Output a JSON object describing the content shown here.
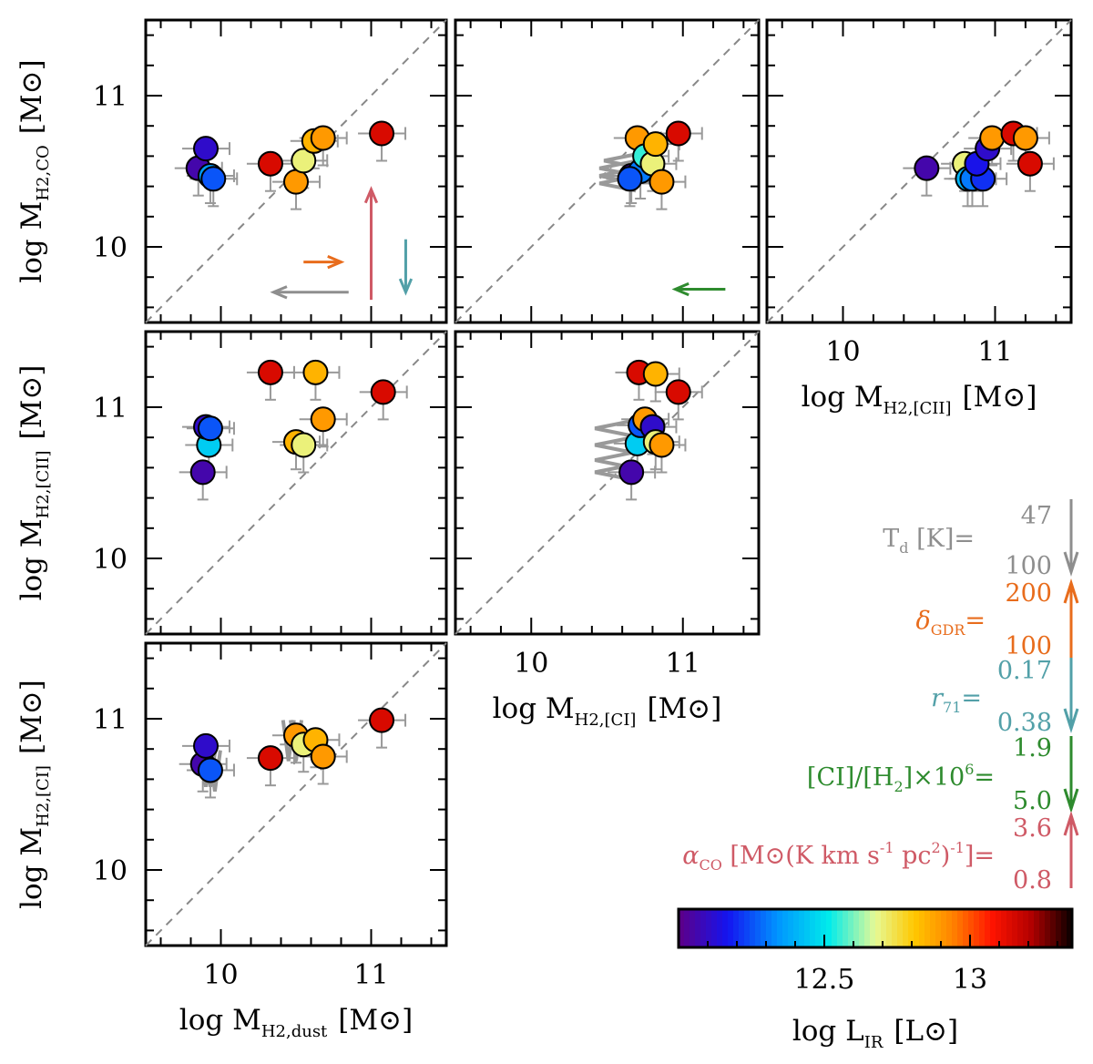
{
  "panels": [
    {
      "id": "dust-vs-co",
      "xlabel": "",
      "ylabel_main": "log M",
      "ylabel_sub": "H2,CO",
      "yunit": "[M⊙]",
      "xlim": [
        9.5,
        11.5
      ],
      "ylim": [
        9.5,
        11.5
      ],
      "show_xticks": false,
      "show_yticks": true,
      "xgap": [
        true,
        true
      ],
      "ygap": [
        false,
        true
      ],
      "points": [
        {
          "x": 9.85,
          "y": 10.52,
          "c": 12.05
        },
        {
          "x": 9.9,
          "y": 10.65,
          "c": 12.1
        },
        {
          "x": 9.93,
          "y": 10.47,
          "c": 12.35
        },
        {
          "x": 9.95,
          "y": 10.45,
          "c": 12.25
        },
        {
          "x": 10.33,
          "y": 10.55,
          "c": 13.15
        },
        {
          "x": 10.5,
          "y": 10.43,
          "c": 12.9
        },
        {
          "x": 10.55,
          "y": 10.57,
          "c": 12.7
        },
        {
          "x": 10.62,
          "y": 10.7,
          "c": 12.85
        },
        {
          "x": 10.68,
          "y": 10.72,
          "c": 12.9
        },
        {
          "x": 11.07,
          "y": 10.75,
          "c": 13.15
        }
      ],
      "arrows": [
        {
          "x1": 10.85,
          "y1": 9.7,
          "x2": 10.35,
          "y2": 9.7,
          "color": "#8e8e8e"
        },
        {
          "x1": 10.55,
          "y1": 9.9,
          "x2": 10.8,
          "y2": 9.9,
          "color": "#e86c1c"
        },
        {
          "x1": 11.0,
          "y1": 9.65,
          "x2": 11.0,
          "y2": 10.38,
          "color": "#cf5a66"
        },
        {
          "x1": 11.23,
          "y1": 10.05,
          "x2": 11.23,
          "y2": 9.7,
          "color": "#52a0a8"
        }
      ],
      "chevrons": []
    },
    {
      "id": "ci-vs-co",
      "xlabel": "",
      "ylabel_main": "",
      "ylabel_sub": "",
      "yunit": "",
      "xlim": [
        9.5,
        11.5
      ],
      "ylim": [
        9.5,
        11.5
      ],
      "show_xticks": false,
      "show_yticks": false,
      "xgap": [
        true,
        true
      ],
      "ygap": [
        true,
        true
      ],
      "points": [
        {
          "x": 10.66,
          "y": 10.47,
          "c": 12.05
        },
        {
          "x": 10.7,
          "y": 10.72,
          "c": 12.9
        },
        {
          "x": 10.72,
          "y": 10.5,
          "c": 12.3
        },
        {
          "x": 10.75,
          "y": 10.6,
          "c": 12.55
        },
        {
          "x": 10.8,
          "y": 10.55,
          "c": 12.7
        },
        {
          "x": 10.82,
          "y": 10.68,
          "c": 12.85
        },
        {
          "x": 10.86,
          "y": 10.43,
          "c": 12.9
        },
        {
          "x": 10.97,
          "y": 10.75,
          "c": 13.15
        },
        {
          "x": 10.65,
          "y": 10.45,
          "c": 12.25
        }
      ],
      "arrows": [
        {
          "x1": 11.28,
          "y1": 9.72,
          "x2": 10.95,
          "y2": 9.72,
          "color": "#2e8b2e"
        }
      ],
      "chevrons": [
        {
          "x": 10.45,
          "y": 10.42
        },
        {
          "x": 10.45,
          "y": 10.47
        },
        {
          "x": 10.45,
          "y": 10.52
        },
        {
          "x": 10.48,
          "y": 10.57
        }
      ]
    },
    {
      "id": "cii-vs-co",
      "xlabel_main": "log M",
      "xlabel_sub": "H2,[CII]",
      "xunit": "[M⊙]",
      "ylabel_main": "",
      "ylabel_sub": "",
      "yunit": "",
      "xlim": [
        9.5,
        11.5
      ],
      "ylim": [
        9.5,
        11.5
      ],
      "show_xticks": true,
      "show_yticks": false,
      "xgap": [
        true,
        true
      ],
      "ygap": [
        true,
        true
      ],
      "points": [
        {
          "x": 10.55,
          "y": 10.52,
          "c": 12.05
        },
        {
          "x": 10.8,
          "y": 10.55,
          "c": 12.7
        },
        {
          "x": 10.82,
          "y": 10.45,
          "c": 12.4
        },
        {
          "x": 10.85,
          "y": 10.45,
          "c": 12.3
        },
        {
          "x": 10.92,
          "y": 10.45,
          "c": 12.2
        },
        {
          "x": 10.88,
          "y": 10.55,
          "c": 12.15
        },
        {
          "x": 10.95,
          "y": 10.65,
          "c": 12.1
        },
        {
          "x": 10.98,
          "y": 10.72,
          "c": 12.9
        },
        {
          "x": 11.12,
          "y": 10.75,
          "c": 13.15
        },
        {
          "x": 11.2,
          "y": 10.72,
          "c": 12.9
        },
        {
          "x": 11.23,
          "y": 10.55,
          "c": 13.15
        }
      ],
      "arrows": [],
      "chevrons": []
    },
    {
      "id": "dust-vs-cii",
      "ylabel_main": "log M",
      "ylabel_sub": "H2,[CII]",
      "yunit": "[M⊙]",
      "xlim": [
        9.5,
        11.5
      ],
      "ylim": [
        9.5,
        11.5
      ],
      "show_xticks": false,
      "show_yticks": true,
      "xgap": [
        true,
        true
      ],
      "ygap": [
        true,
        true
      ],
      "points": [
        {
          "x": 9.88,
          "y": 10.57,
          "c": 12.05
        },
        {
          "x": 9.92,
          "y": 10.75,
          "c": 12.45
        },
        {
          "x": 9.9,
          "y": 10.87,
          "c": 12.1
        },
        {
          "x": 9.93,
          "y": 10.86,
          "c": 12.25
        },
        {
          "x": 10.33,
          "y": 11.23,
          "c": 13.15
        },
        {
          "x": 10.5,
          "y": 10.77,
          "c": 12.85
        },
        {
          "x": 10.55,
          "y": 10.75,
          "c": 12.7
        },
        {
          "x": 10.63,
          "y": 11.23,
          "c": 12.85
        },
        {
          "x": 10.68,
          "y": 10.92,
          "c": 12.9
        },
        {
          "x": 11.08,
          "y": 11.1,
          "c": 13.15
        }
      ],
      "arrows": [],
      "chevrons": []
    },
    {
      "id": "ci-vs-cii",
      "xlabel_main": "log M",
      "xlabel_sub": "H2,[CI]",
      "xunit": "[M⊙]",
      "ylabel_main": "",
      "ylabel_sub": "",
      "yunit": "",
      "xlim": [
        9.5,
        11.5
      ],
      "ylim": [
        9.5,
        11.5
      ],
      "show_xticks": true,
      "show_yticks": false,
      "xgap": [
        true,
        true
      ],
      "ygap": [
        true,
        true
      ],
      "points": [
        {
          "x": 10.66,
          "y": 10.57,
          "c": 12.05
        },
        {
          "x": 10.7,
          "y": 10.76,
          "c": 12.45
        },
        {
          "x": 10.72,
          "y": 10.88,
          "c": 12.25
        },
        {
          "x": 10.75,
          "y": 10.92,
          "c": 12.9
        },
        {
          "x": 10.8,
          "y": 10.87,
          "c": 12.1
        },
        {
          "x": 10.82,
          "y": 10.77,
          "c": 12.7
        },
        {
          "x": 10.86,
          "y": 10.75,
          "c": 12.9
        },
        {
          "x": 10.71,
          "y": 11.23,
          "c": 13.15
        },
        {
          "x": 10.82,
          "y": 11.22,
          "c": 12.85
        },
        {
          "x": 10.97,
          "y": 11.1,
          "c": 13.15
        }
      ],
      "arrows": [],
      "chevrons": [
        {
          "x": 10.42,
          "y": 10.57
        },
        {
          "x": 10.42,
          "y": 10.65
        },
        {
          "x": 10.42,
          "y": 10.75
        },
        {
          "x": 10.42,
          "y": 10.86
        }
      ]
    },
    {
      "id": "dust-vs-ci",
      "xlabel_main": "log M",
      "xlabel_sub": "H2,dust",
      "xunit": "[M⊙]",
      "ylabel_main": "log M",
      "ylabel_sub": "H2,[CI]",
      "yunit": "[M⊙]",
      "xlim": [
        9.5,
        11.5
      ],
      "ylim": [
        9.5,
        11.5
      ],
      "show_xticks": true,
      "show_yticks": true,
      "xgap": [
        true,
        true
      ],
      "ygap": [
        true,
        true
      ],
      "points": [
        {
          "x": 9.88,
          "y": 10.7,
          "c": 12.05
        },
        {
          "x": 9.9,
          "y": 10.82,
          "c": 12.1
        },
        {
          "x": 9.93,
          "y": 10.66,
          "c": 12.25
        },
        {
          "x": 10.33,
          "y": 10.74,
          "c": 13.15
        },
        {
          "x": 10.5,
          "y": 10.89,
          "c": 12.9
        },
        {
          "x": 10.55,
          "y": 10.83,
          "c": 12.7
        },
        {
          "x": 10.63,
          "y": 10.86,
          "c": 12.85
        },
        {
          "x": 10.68,
          "y": 10.75,
          "c": 12.9
        },
        {
          "x": 11.07,
          "y": 10.99,
          "c": 13.15
        }
      ],
      "arrows": [],
      "chevrons_down": [
        {
          "x": 9.9,
          "y": 10.55
        },
        {
          "x": 9.93,
          "y": 10.55
        },
        {
          "x": 9.96,
          "y": 10.52
        },
        {
          "x": 10.45,
          "y": 10.72
        },
        {
          "x": 10.5,
          "y": 10.72
        }
      ]
    }
  ],
  "ticks": {
    "major": [
      "10",
      "11"
    ],
    "values": [
      10,
      11
    ]
  },
  "legend": {
    "td": {
      "label": "T",
      "sub": "d",
      "unit": " [K]=",
      "top": "47",
      "bottom": "100",
      "color": "#8e8e8e"
    },
    "gdr": {
      "label": "δ",
      "sub": "GDR",
      "unit": "=",
      "top": "200",
      "bottom": "100",
      "color": "#e86c1c"
    },
    "r71": {
      "label": "r",
      "sub": "71",
      "unit": "=",
      "top": "0.17",
      "bottom": "0.38",
      "color": "#52a0a8"
    },
    "ci": {
      "label": "[CI]/[H",
      "sub": "2",
      "unit": "]×10",
      "sup": "6",
      "tail": "=",
      "top": "1.9",
      "bottom": "5.0",
      "color": "#2e8b2e"
    },
    "aco": {
      "label": "α",
      "sub": "CO",
      "unit": " [M⊙(K km s",
      "sup1": "-1",
      "mid": " pc",
      "sup2": "2",
      "tail": ")",
      "sup3": "-1",
      "end": "]=",
      "top": "3.6",
      "bottom": "0.8",
      "color": "#cf5a66"
    }
  },
  "colorbar": {
    "label_main": "log L",
    "label_sub": "IR",
    "label_unit": "[L⊙]",
    "range": [
      12.0,
      13.35
    ],
    "ticks": [
      "12.5",
      "13"
    ],
    "tick_values": [
      12.5,
      13.0
    ]
  },
  "chart_data": {
    "type": "scatter",
    "title": "",
    "xlabel": "log M_H2 [M⊙]",
    "ylabel": "log M_H2 [M⊙]",
    "xlim": [
      9.5,
      11.5
    ],
    "ylim": [
      9.5,
      11.5
    ],
    "color_variable": "log L_IR [L⊙]",
    "series": [
      {
        "name": "M_H2,dust vs M_H2,CO",
        "values": [
          [
            9.85,
            10.52
          ],
          [
            9.9,
            10.65
          ],
          [
            9.93,
            10.47
          ],
          [
            9.95,
            10.45
          ],
          [
            10.33,
            10.55
          ],
          [
            10.5,
            10.43
          ],
          [
            10.55,
            10.57
          ],
          [
            10.62,
            10.7
          ],
          [
            10.68,
            10.72
          ],
          [
            11.07,
            10.75
          ]
        ]
      },
      {
        "name": "M_H2,[CI] vs M_H2,CO",
        "values": [
          [
            10.65,
            10.45
          ],
          [
            10.66,
            10.47
          ],
          [
            10.7,
            10.72
          ],
          [
            10.72,
            10.5
          ],
          [
            10.75,
            10.6
          ],
          [
            10.8,
            10.55
          ],
          [
            10.82,
            10.68
          ],
          [
            10.86,
            10.43
          ],
          [
            10.97,
            10.75
          ]
        ]
      },
      {
        "name": "M_H2,[CII] vs M_H2,CO",
        "values": [
          [
            10.55,
            10.52
          ],
          [
            10.8,
            10.55
          ],
          [
            10.82,
            10.45
          ],
          [
            10.85,
            10.45
          ],
          [
            10.88,
            10.55
          ],
          [
            10.92,
            10.45
          ],
          [
            10.95,
            10.65
          ],
          [
            10.98,
            10.72
          ],
          [
            11.12,
            10.75
          ],
          [
            11.2,
            10.72
          ],
          [
            11.23,
            10.55
          ]
        ]
      },
      {
        "name": "M_H2,dust vs M_H2,[CII]",
        "values": [
          [
            9.88,
            10.57
          ],
          [
            9.9,
            10.87
          ],
          [
            9.92,
            10.75
          ],
          [
            9.93,
            10.86
          ],
          [
            10.33,
            11.23
          ],
          [
            10.5,
            10.77
          ],
          [
            10.55,
            10.75
          ],
          [
            10.63,
            11.23
          ],
          [
            10.68,
            10.92
          ],
          [
            11.08,
            11.1
          ]
        ]
      },
      {
        "name": "M_H2,[CI] vs M_H2,[CII]",
        "values": [
          [
            10.66,
            10.57
          ],
          [
            10.7,
            10.76
          ],
          [
            10.71,
            11.23
          ],
          [
            10.72,
            10.88
          ],
          [
            10.75,
            10.92
          ],
          [
            10.8,
            10.87
          ],
          [
            10.82,
            10.77
          ],
          [
            10.82,
            11.22
          ],
          [
            10.86,
            10.75
          ],
          [
            10.97,
            11.1
          ]
        ]
      },
      {
        "name": "M_H2,dust vs M_H2,[CI]",
        "values": [
          [
            9.88,
            10.7
          ],
          [
            9.9,
            10.82
          ],
          [
            9.93,
            10.66
          ],
          [
            10.33,
            10.74
          ],
          [
            10.5,
            10.89
          ],
          [
            10.55,
            10.83
          ],
          [
            10.63,
            10.86
          ],
          [
            10.68,
            10.75
          ],
          [
            11.07,
            10.99
          ]
        ]
      }
    ]
  }
}
